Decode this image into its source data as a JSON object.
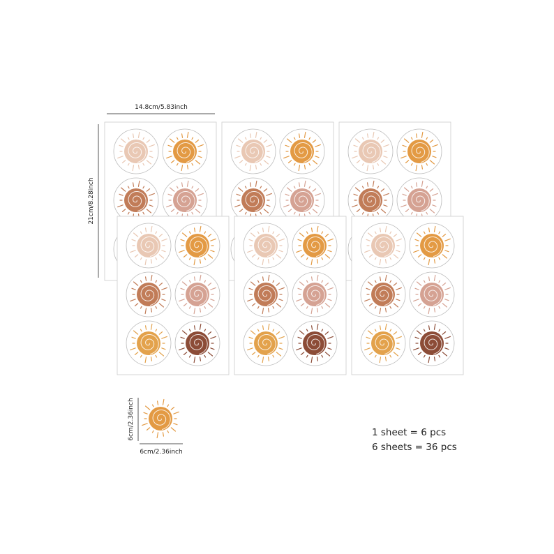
{
  "dimensions": {
    "sheet_width": "14.8cm/5.83inch",
    "sheet_height": "21cm/8.28inch",
    "sticker_height": "6cm/2.36inch",
    "sticker_width": "6cm/2.36inch"
  },
  "quantities": [
    "1 sheet = 6 pcs",
    "6 sheets = 36 pcs"
  ]
}
